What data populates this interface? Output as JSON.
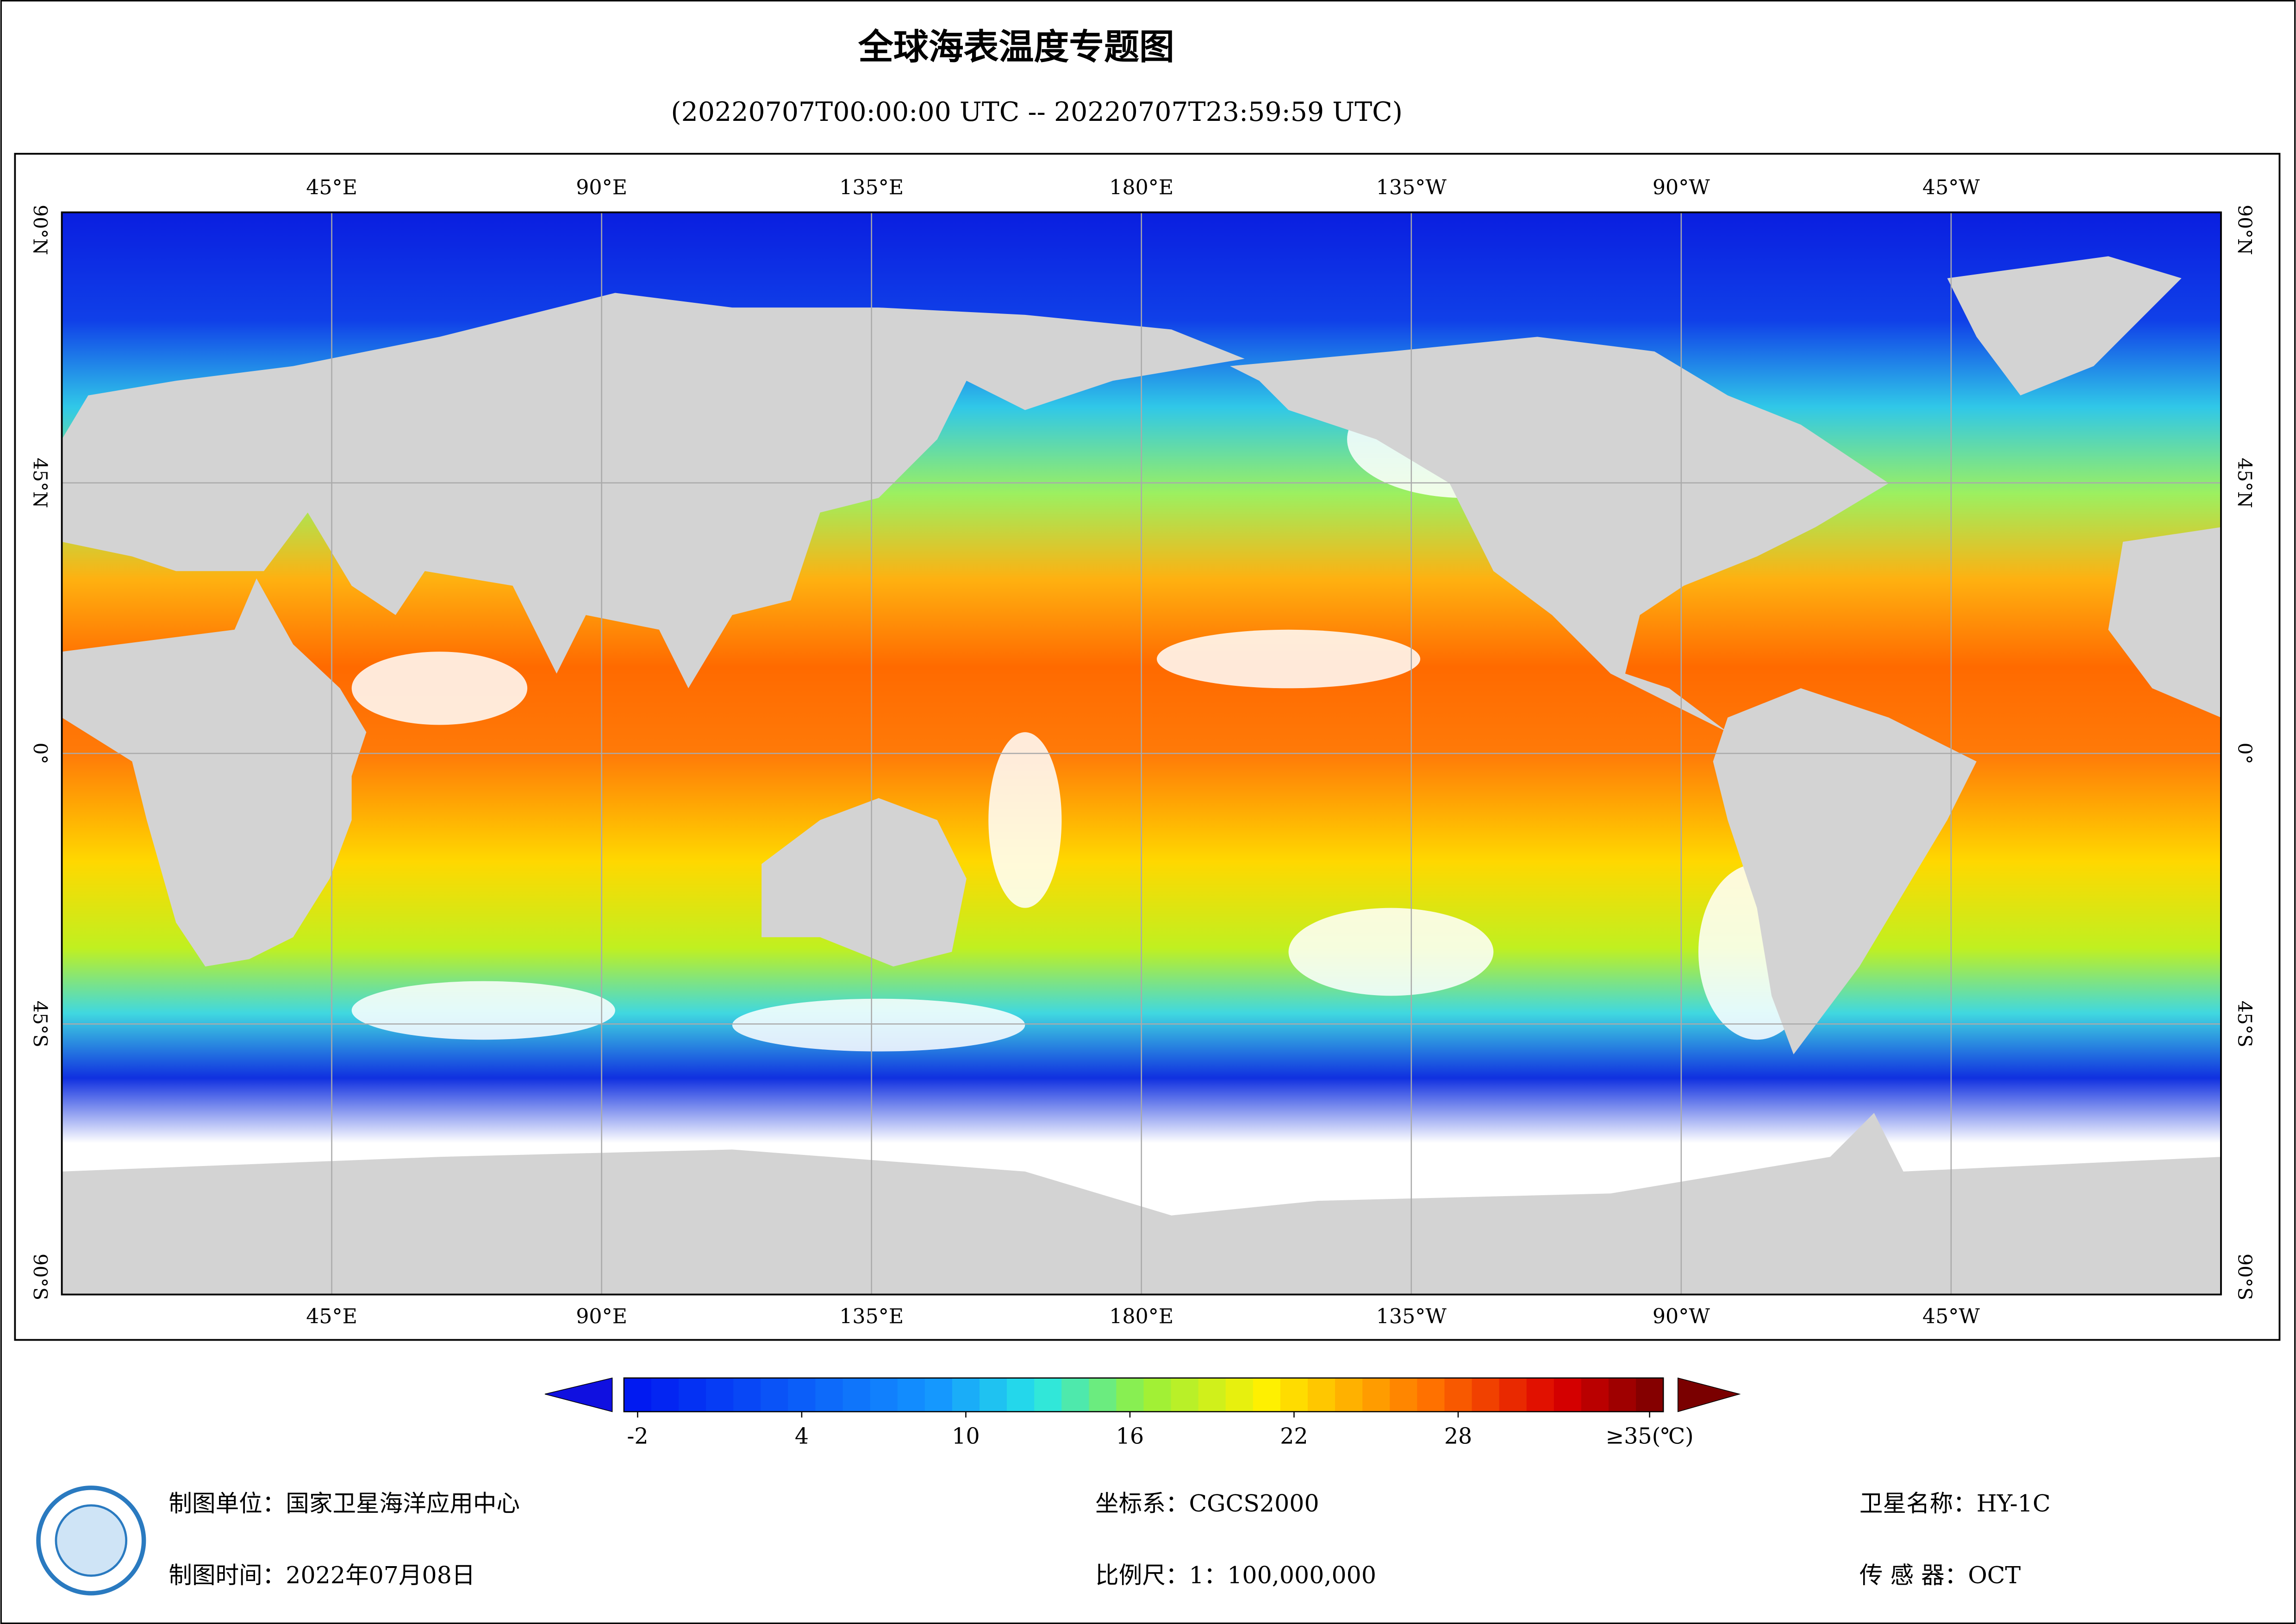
{
  "header": {
    "title": "全球海表温度专题图",
    "subtitle": "(20220707T00:00:00 UTC -- 20220707T23:59:59 UTC)"
  },
  "map": {
    "lonlim": [
      0,
      360
    ],
    "latlim": [
      -90,
      90
    ],
    "lon_ticks": [
      {
        "value": 45,
        "label": "45°E"
      },
      {
        "value": 90,
        "label": "90°E"
      },
      {
        "value": 135,
        "label": "135°E"
      },
      {
        "value": 180,
        "label": "180°E"
      },
      {
        "value": 225,
        "label": "135°W"
      },
      {
        "value": 270,
        "label": "90°W"
      },
      {
        "value": 315,
        "label": "45°W"
      }
    ],
    "lat_ticks": [
      {
        "value": 90,
        "label": "90°N"
      },
      {
        "value": 45,
        "label": "45°N"
      },
      {
        "value": 0,
        "label": "0°"
      },
      {
        "value": -45,
        "label": "45°S"
      },
      {
        "value": -90,
        "label": "90°S"
      }
    ]
  },
  "colorbar": {
    "lim": [
      -2.5,
      35.5
    ],
    "ticks": [
      -2,
      4,
      10,
      16,
      22,
      28,
      {
        "value": 35,
        "label": "≥35(℃)"
      }
    ]
  },
  "footer": {
    "unit": "制图单位：国家卫星海洋应用中心",
    "date": "制图时间：2022年07月08日",
    "crs": "坐标系：CGCS2000",
    "scale": "比例尺：1：100,000,000",
    "satellite": "卫星名称：HY-1C",
    "sensor": "传 感 器：OCT"
  }
}
